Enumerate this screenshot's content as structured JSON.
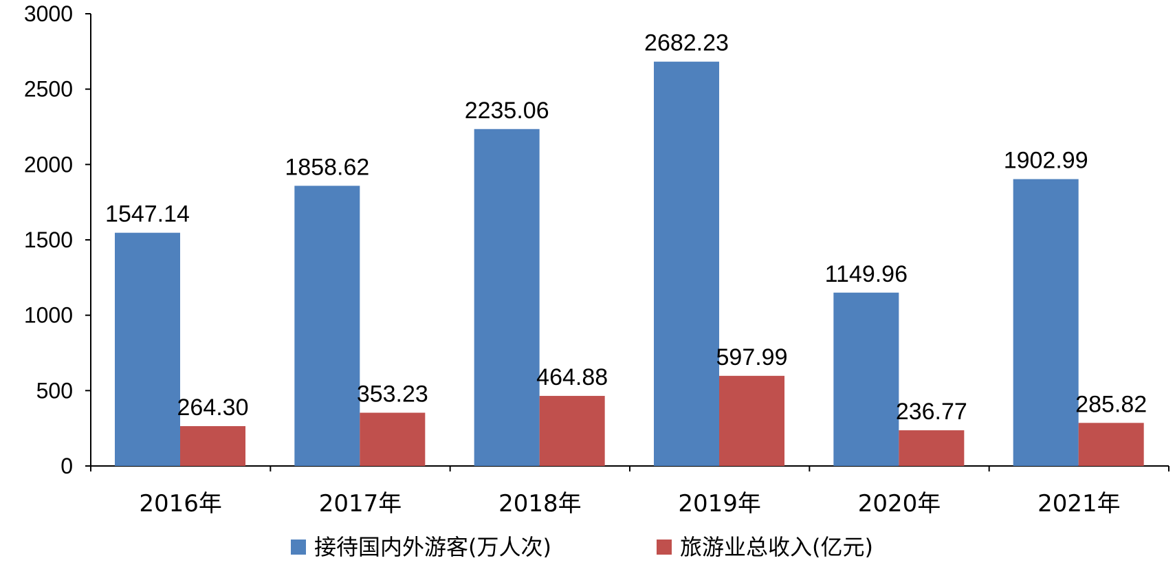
{
  "chart_data": {
    "type": "bar",
    "categories": [
      "2016年",
      "2017年",
      "2018年",
      "2019年",
      "2020年",
      "2021年"
    ],
    "series": [
      {
        "name": "接待国内外游客(万人次)",
        "color": "#4f81bd",
        "values": [
          1547.14,
          1858.62,
          2235.06,
          2682.23,
          1149.96,
          1902.99
        ],
        "labels": [
          "1547.14",
          "1858.62",
          "2235.06",
          "2682.23",
          "1149.96",
          "1902.99"
        ]
      },
      {
        "name": "旅游业总收入(亿元)",
        "color": "#c0504d",
        "values": [
          264.3,
          353.23,
          464.88,
          597.99,
          236.77,
          285.82
        ],
        "labels": [
          "264.30",
          "353.23",
          "464.88",
          "597.99",
          "236.77",
          "285.82"
        ]
      }
    ],
    "ylim": [
      0,
      3000
    ],
    "yticks": [
      "0",
      "500",
      "1000",
      "1500",
      "2000",
      "2500",
      "3000"
    ],
    "grid": false,
    "legend_position": "bottom"
  }
}
